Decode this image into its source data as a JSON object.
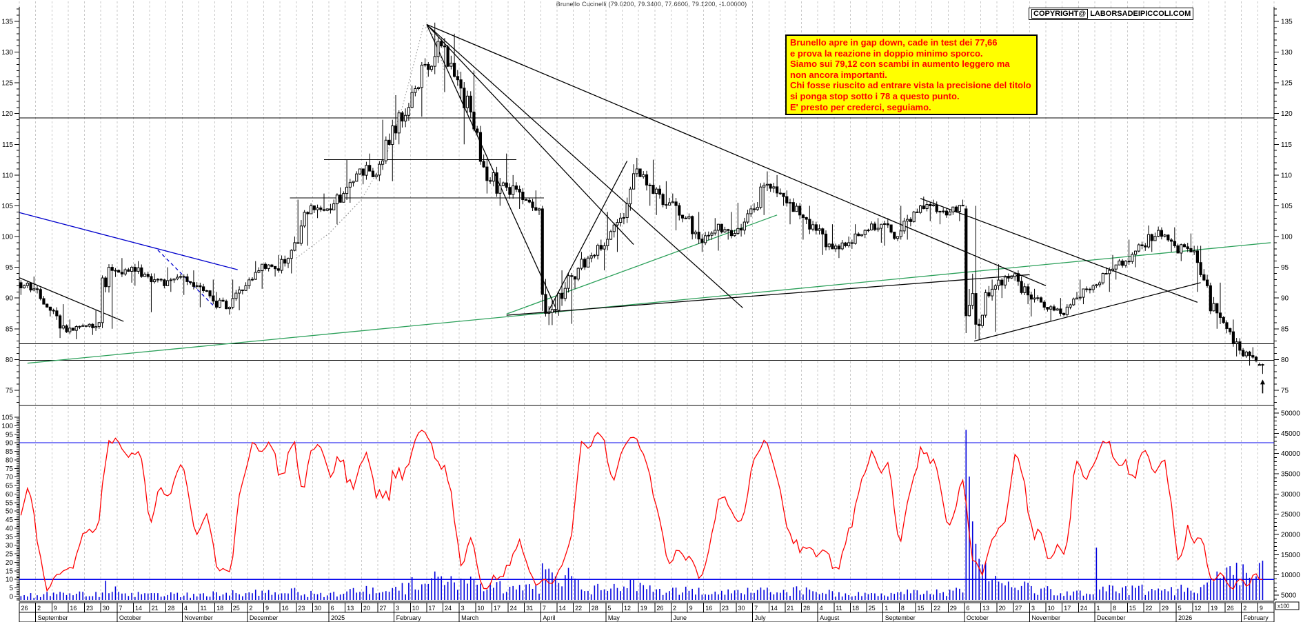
{
  "title": "Brunello Cucinelli (79.0200, 79.3400, 77.6600, 79.1200, -1.00000)",
  "copyright": {
    "word1": "COPYRIGHT@",
    "word2": "LABORSADEIPICCOLI.COM"
  },
  "note": {
    "lines": [
      "Brunello apre in gap down, cade in test dei 77,66",
      "e prova la reazione in doppio minimo sporco.",
      "Siamo sui 79,12 con scambi in aumento leggero ma",
      "non ancora importanti.",
      "Chi fosse riuscito ad entrare vista la precisione del titolo",
      "si ponga stop sotto i 78 a questo punto.",
      "E' presto per crederci, seguiamo."
    ],
    "bg": "#ffff00",
    "text_color": "#ff0000"
  },
  "colors": {
    "grid": "#c9c9c9",
    "axis": "#000000",
    "candle_up_fill": "#ffffff",
    "candle_down_fill": "#000000",
    "volume": "#0000dd",
    "oscillator": "#ff0000",
    "osc_bands": "#0000ee",
    "trend_blue": "#0000cc",
    "trend_green": "#2ca05a",
    "trend_black": "#000000",
    "dotted_curve": "#999999"
  },
  "chart_data": {
    "type": "candlestick",
    "symbol": "Brunello Cucinelli",
    "last_quote": {
      "open": 79.02,
      "high": 79.34,
      "low": 77.66,
      "close": 79.12,
      "change": -1.0
    },
    "price_axis": {
      "min": 75,
      "max": 135,
      "step": 5,
      "side": "both"
    },
    "oscillator": {
      "type": "stochastic",
      "window": 10,
      "smooth": 3,
      "overbought": 90,
      "oversold": 10,
      "axis_min": -5,
      "axis_max": 105,
      "axis_step": 5
    },
    "volume_axis": {
      "min": 5000,
      "max": 50000,
      "step": 5000,
      "unit": "x100"
    },
    "last_week_days": 2,
    "weeks_format": [
      "day_label",
      "open",
      "high",
      "low",
      "close",
      "avg_volume_x100",
      "speed"
    ],
    "weeks": [
      [
        "26",
        92.5,
        93.5,
        90.5,
        91.5,
        1200
      ],
      [
        "2",
        91.5,
        92.0,
        87.0,
        88.0,
        1500
      ],
      [
        "9",
        88.0,
        89.0,
        83.5,
        84.5,
        2200
      ],
      [
        "16",
        84.5,
        86.5,
        83.3,
        85.5,
        1800
      ],
      [
        "23",
        85.5,
        88.0,
        84.0,
        86.0,
        1500
      ],
      [
        "30",
        86.0,
        95.5,
        85.0,
        94.5,
        3800,
        3
      ],
      [
        "7",
        94.5,
        96.5,
        92.5,
        95.0,
        2200
      ],
      [
        "14",
        95.0,
        96.0,
        92.0,
        93.5,
        1500
      ],
      [
        "21",
        93.5,
        94.0,
        87.7,
        92.0,
        1800
      ],
      [
        "28",
        92.0,
        95.0,
        91.0,
        93.5,
        1400
      ],
      [
        "4",
        93.5,
        94.5,
        90.5,
        92.0,
        1300
      ],
      [
        "11",
        92.0,
        93.0,
        88.5,
        89.5,
        1500
      ],
      [
        "18",
        89.5,
        91.0,
        87.3,
        88.5,
        1600
      ],
      [
        "25",
        88.5,
        93.0,
        88.0,
        92.0,
        1700
      ],
      [
        "2",
        92.0,
        96.0,
        91.5,
        95.5,
        2000
      ],
      [
        "9",
        95.5,
        97.0,
        93.5,
        94.5,
        1800
      ],
      [
        "16",
        94.5,
        100.0,
        94.0,
        99.0,
        2200
      ],
      [
        "23",
        99.0,
        106.0,
        98.5,
        105.0,
        1600
      ],
      [
        "30",
        105.0,
        107.0,
        103.0,
        104.5,
        1300
      ],
      [
        "6",
        104.5,
        108.0,
        102.0,
        107.0,
        2000
      ],
      [
        "13",
        107.0,
        112.5,
        105.5,
        111.0,
        2200
      ],
      [
        "20",
        111.0,
        113.5,
        108.5,
        110.0,
        2500
      ],
      [
        "27",
        110.0,
        119.0,
        109.0,
        118.0,
        2600
      ],
      [
        "3",
        118.0,
        123.0,
        115.0,
        121.0,
        3200
      ],
      [
        "10",
        121.0,
        129.0,
        119.5,
        128.0,
        4200
      ],
      [
        "17",
        128.0,
        134.8,
        126.0,
        131.0,
        5200
      ],
      [
        "24",
        131.0,
        133.0,
        123.5,
        125.5,
        4500
      ],
      [
        "3",
        125.5,
        127.0,
        115.0,
        117.5,
        4200
      ],
      [
        "10",
        117.5,
        118.0,
        107.0,
        109.0,
        3800
      ],
      [
        "17",
        109.0,
        113.5,
        105.0,
        108.0,
        3500
      ],
      [
        "24",
        108.0,
        110.0,
        104.5,
        106.0,
        3000
      ],
      [
        "31",
        106.0,
        107.5,
        103.5,
        104.5,
        3200
      ],
      [
        "7",
        104.5,
        105.0,
        85.6,
        88.0,
        9000,
        4
      ],
      [
        "14",
        88.0,
        94.5,
        85.8,
        93.5,
        6000
      ],
      [
        "22",
        93.5,
        97.5,
        91.5,
        96.5,
        3800
      ],
      [
        "28",
        96.5,
        99.5,
        94.5,
        98.5,
        3200
      ],
      [
        "5",
        98.5,
        104.0,
        97.5,
        103.0,
        3000
      ],
      [
        "12",
        103.0,
        112.8,
        102.0,
        111.0,
        3600
      ],
      [
        "19",
        111.0,
        112.5,
        105.0,
        107.0,
        3200
      ],
      [
        "26",
        107.0,
        109.0,
        103.5,
        105.5,
        2600
      ],
      [
        "2",
        105.5,
        107.0,
        101.0,
        103.0,
        2400
      ],
      [
        "9",
        103.0,
        104.0,
        97.5,
        99.0,
        2800
      ],
      [
        "16",
        99.0,
        103.0,
        97.7,
        102.0,
        2400
      ],
      [
        "23",
        102.0,
        104.0,
        99.5,
        100.5,
        2000
      ],
      [
        "30",
        100.5,
        105.5,
        100.0,
        104.5,
        2200
      ],
      [
        "7",
        104.5,
        110.6,
        103.5,
        108.5,
        3000
      ],
      [
        "14",
        108.5,
        110.0,
        105.0,
        106.5,
        2600
      ],
      [
        "21",
        106.5,
        107.5,
        102.0,
        103.5,
        2400
      ],
      [
        "28",
        103.5,
        105.0,
        99.5,
        101.0,
        2200
      ],
      [
        "4",
        101.0,
        102.0,
        97.0,
        98.0,
        1800
      ],
      [
        "11",
        98.0,
        100.0,
        96.5,
        99.0,
        1500
      ],
      [
        "18",
        99.0,
        102.0,
        98.0,
        101.0,
        1500
      ],
      [
        "25",
        101.0,
        103.0,
        99.0,
        102.0,
        1400
      ],
      [
        "1",
        102.0,
        103.0,
        98.5,
        100.0,
        1600
      ],
      [
        "8",
        100.0,
        105.0,
        99.5,
        104.0,
        2000
      ],
      [
        "15",
        104.0,
        106.5,
        102.5,
        105.0,
        2400
      ],
      [
        "22",
        105.0,
        106.0,
        102.0,
        103.5,
        2000
      ],
      [
        "29",
        103.5,
        106.0,
        102.5,
        105.0,
        2200
      ],
      [
        "6",
        104.5,
        105.0,
        83.3,
        85.5,
        25000,
        4
      ],
      [
        "13",
        85.5,
        93.0,
        84.5,
        92.0,
        8000,
        2
      ],
      [
        "20",
        92.0,
        95.5,
        90.0,
        93.5,
        5000
      ],
      [
        "27",
        93.5,
        94.5,
        89.0,
        90.5,
        3600
      ],
      [
        "3",
        90.5,
        91.5,
        87.0,
        88.5,
        2800
      ],
      [
        "10",
        88.5,
        90.0,
        86.3,
        87.5,
        2400
      ],
      [
        "17",
        87.5,
        91.0,
        87.0,
        90.0,
        2200
      ],
      [
        "24",
        90.0,
        93.0,
        89.0,
        92.0,
        2000
      ],
      [
        "1",
        92.0,
        95.0,
        91.0,
        94.5,
        3600
      ],
      [
        "8",
        94.5,
        97.0,
        93.0,
        96.0,
        2600
      ],
      [
        "15",
        96.0,
        99.5,
        95.0,
        98.5,
        2800
      ],
      [
        "22",
        98.5,
        101.8,
        97.5,
        101.0,
        2600
      ],
      [
        "29",
        101.0,
        101.5,
        97.5,
        98.5,
        2400
      ],
      [
        "5",
        98.5,
        100.5,
        96.0,
        97.5,
        2800
      ],
      [
        "12",
        97.5,
        98.5,
        91.0,
        92.0,
        3600
      ],
      [
        "19",
        92.0,
        92.5,
        85.0,
        86.0,
        5200,
        2
      ],
      [
        "26",
        86.0,
        86.5,
        80.5,
        81.5,
        7000
      ],
      [
        "2",
        81.5,
        82.0,
        79.0,
        79.8,
        8000
      ],
      [
        "9",
        79.02,
        79.5,
        77.66,
        79.12,
        9000
      ]
    ],
    "months": [
      [
        "",
        0,
        1
      ],
      [
        "September",
        1,
        5
      ],
      [
        "October",
        6,
        4
      ],
      [
        "November",
        10,
        4
      ],
      [
        "December",
        14,
        5
      ],
      [
        "2025",
        19,
        4
      ],
      [
        "February",
        23,
        4
      ],
      [
        "March",
        27,
        5
      ],
      [
        "April",
        32,
        4
      ],
      [
        "May",
        36,
        4
      ],
      [
        "June",
        40,
        5
      ],
      [
        "July",
        45,
        4
      ],
      [
        "August",
        49,
        4
      ],
      [
        "September",
        53,
        5
      ],
      [
        "October",
        58,
        4
      ],
      [
        "November",
        62,
        4
      ],
      [
        "December",
        66,
        5
      ],
      [
        "2026",
        71,
        4
      ],
      [
        "February",
        75,
        2
      ]
    ],
    "volume_spikes": [
      [
        58,
        0,
        45500
      ],
      [
        58,
        1,
        33000
      ],
      [
        58,
        2,
        21000
      ],
      [
        58,
        3,
        15000
      ],
      [
        58,
        4,
        11000
      ],
      [
        59,
        0,
        9500
      ],
      [
        66,
        0,
        14000
      ],
      [
        32,
        0,
        9800
      ],
      [
        32,
        1,
        8200
      ],
      [
        25,
        3,
        6200
      ],
      [
        76,
        1,
        10500
      ]
    ],
    "hlines": [
      {
        "price": 119.3,
        "w1": 0,
        "w2": 77
      },
      {
        "price": 112.5,
        "w1": 18.7,
        "w2": 30.5
      },
      {
        "price": 106.3,
        "w1": 16.6,
        "w2": 32.2
      },
      {
        "price": 82.55,
        "w1": 0,
        "w2": 77
      },
      {
        "price": 79.85,
        "w1": 0,
        "w2": 77
      }
    ],
    "trendlines": [
      {
        "w1": 0,
        "p1": 103.9,
        "w2": 13.4,
        "p2": 94.6,
        "color": "trend_blue",
        "dash": 0
      },
      {
        "w1": 8.5,
        "p1": 97.8,
        "w2": 11.9,
        "p2": 88.8,
        "color": "trend_blue",
        "dash": 1
      },
      {
        "w1": 0,
        "p1": 93.3,
        "w2": 6.4,
        "p2": 86.2,
        "color": "trend_black",
        "dash": 0
      },
      {
        "w1": 0.5,
        "p1": 79.4,
        "w2": 76.8,
        "p2": 99.0,
        "color": "trend_green",
        "dash": 0
      },
      {
        "w1": 29.9,
        "p1": 87.4,
        "w2": 46.5,
        "p2": 103.5,
        "color": "trend_green",
        "dash": 0
      },
      {
        "w1": 29.9,
        "p1": 87.2,
        "w2": 62.0,
        "p2": 93.8,
        "color": "trend_black",
        "dash": 0
      },
      {
        "w1": 25.0,
        "p1": 134.5,
        "w2": 32.9,
        "p2": 88.5,
        "color": "trend_black",
        "dash": 0
      },
      {
        "w1": 25.0,
        "p1": 134.5,
        "w2": 37.7,
        "p2": 98.7,
        "color": "trend_black",
        "dash": 0
      },
      {
        "w1": 25.0,
        "p1": 134.5,
        "w2": 44.4,
        "p2": 88.4,
        "color": "trend_black",
        "dash": 0
      },
      {
        "w1": 25.0,
        "p1": 134.5,
        "w2": 63.0,
        "p2": 92.0,
        "color": "trend_black",
        "dash": 0
      },
      {
        "w1": 32.5,
        "p1": 88.0,
        "w2": 37.3,
        "p2": 112.3,
        "color": "trend_black",
        "dash": 0
      },
      {
        "w1": 55.3,
        "p1": 106.2,
        "w2": 72.3,
        "p2": 89.3,
        "color": "trend_black",
        "dash": 0
      },
      {
        "w1": 58.6,
        "p1": 83.0,
        "w2": 72.5,
        "p2": 92.5,
        "color": "trend_black",
        "dash": 0
      }
    ],
    "dotted_curve": [
      [
        17,
        96.5
      ],
      [
        19,
        100.5
      ],
      [
        21,
        106
      ],
      [
        22.5,
        113
      ],
      [
        23.5,
        121
      ],
      [
        24.3,
        129
      ],
      [
        24.8,
        134.3
      ],
      [
        25.5,
        132.5
      ],
      [
        26.1,
        126.8
      ]
    ],
    "arrow_marker": {
      "week": 76,
      "day": 1,
      "price": 77.3
    }
  }
}
